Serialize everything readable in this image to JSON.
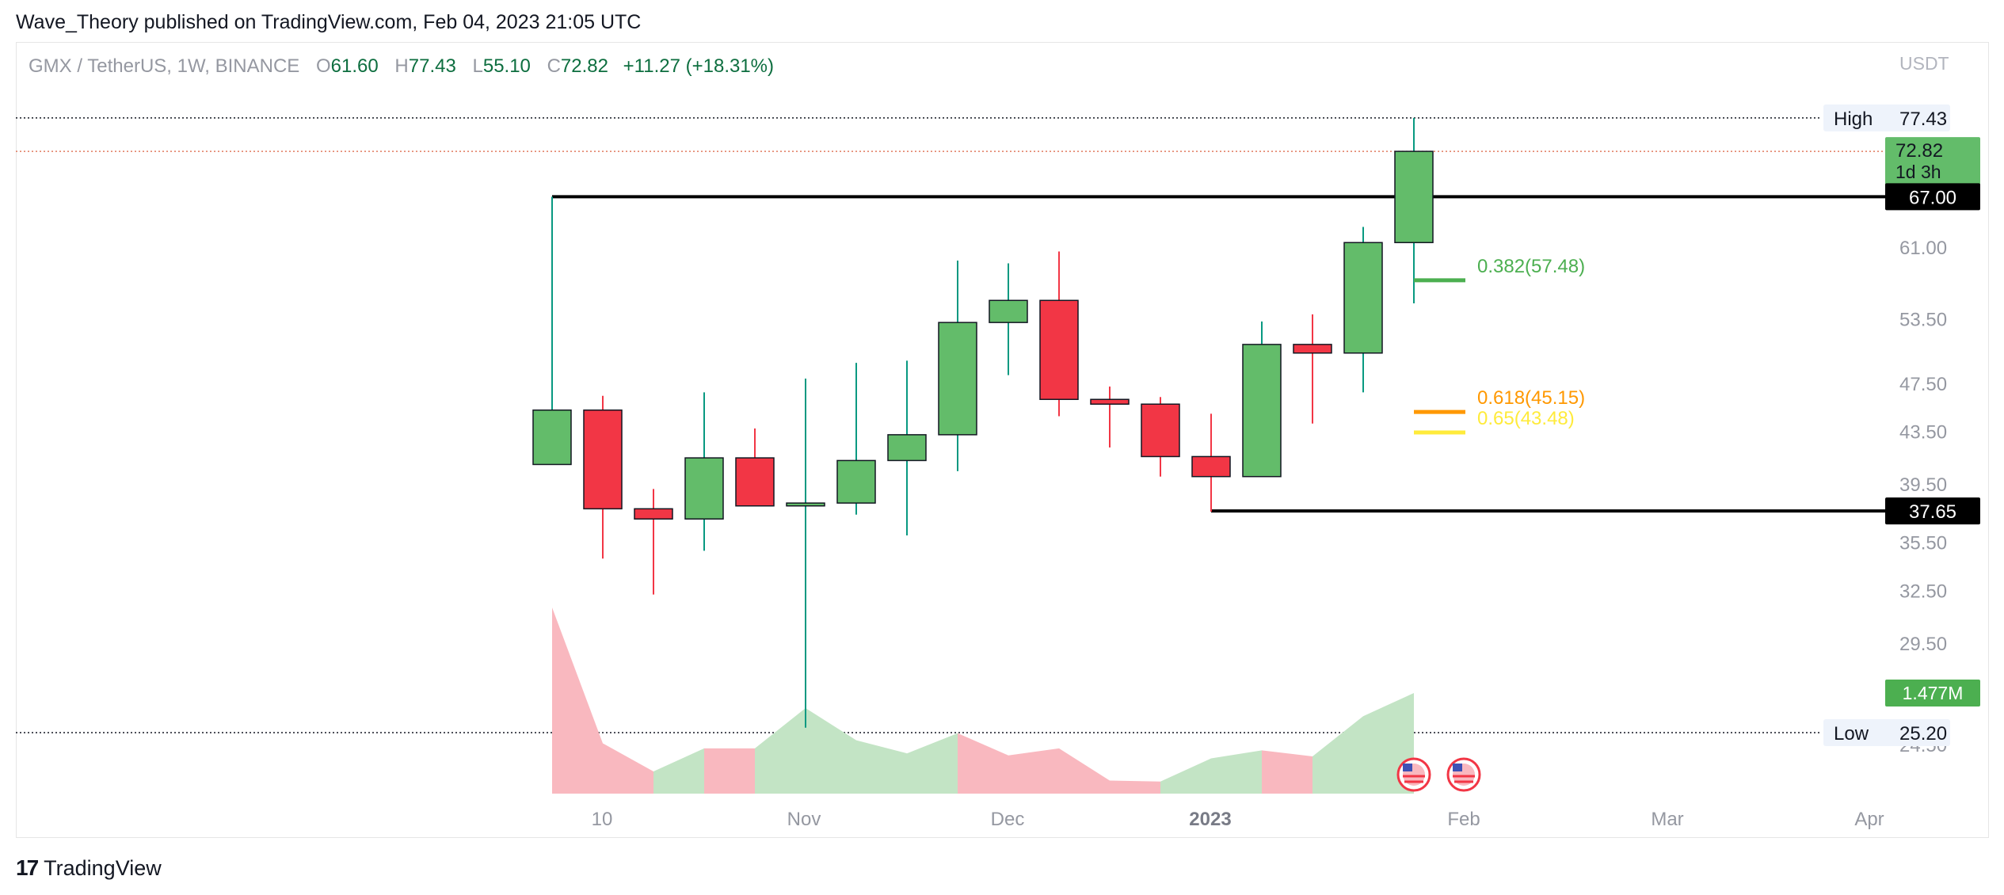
{
  "header": {
    "publisher_text": "Wave_Theory published on TradingView.com, Feb 04, 2023 21:05 UTC"
  },
  "legend": {
    "symbol": "GMX / TetherUS, 1W, BINANCE",
    "open_label": "O",
    "open": "61.60",
    "high_label": "H",
    "high": "77.43",
    "low_label": "L",
    "low": "55.10",
    "close_label": "C",
    "close": "72.82",
    "change": "+11.27 (+18.31%)"
  },
  "footer": {
    "logo_mark": "17",
    "brand": "TradingView"
  },
  "chart_data": {
    "type": "candlestick",
    "currency_label": "USDT",
    "y_ticks": [
      "61.00",
      "53.50",
      "47.50",
      "43.50",
      "39.50",
      "35.50",
      "32.50",
      "29.50",
      "24.50"
    ],
    "x_ticks": [
      "10",
      "Nov",
      "Dec",
      "2023",
      "Feb",
      "Mar",
      "Apr"
    ],
    "candles": [
      {
        "o": 41.0,
        "h": 67.0,
        "l": 41.0,
        "c": 45.3
      },
      {
        "o": 45.3,
        "h": 46.5,
        "l": 34.5,
        "c": 37.8
      },
      {
        "o": 37.8,
        "h": 39.2,
        "l": 32.3,
        "c": 37.1
      },
      {
        "o": 37.1,
        "h": 46.8,
        "l": 35.0,
        "c": 41.5
      },
      {
        "o": 41.5,
        "h": 43.8,
        "l": 38.0,
        "c": 38.0
      },
      {
        "o": 38.0,
        "h": 48.0,
        "l": 25.3,
        "c": 38.2
      },
      {
        "o": 38.2,
        "h": 49.4,
        "l": 37.4,
        "c": 41.3
      },
      {
        "o": 41.3,
        "h": 49.6,
        "l": 36.0,
        "c": 43.3
      },
      {
        "o": 43.3,
        "h": 59.6,
        "l": 40.5,
        "c": 53.2
      },
      {
        "o": 53.2,
        "h": 59.3,
        "l": 48.3,
        "c": 55.4
      },
      {
        "o": 55.4,
        "h": 60.6,
        "l": 44.8,
        "c": 46.2
      },
      {
        "o": 46.2,
        "h": 47.3,
        "l": 42.3,
        "c": 45.8
      },
      {
        "o": 45.8,
        "h": 46.4,
        "l": 40.1,
        "c": 41.6
      },
      {
        "o": 41.6,
        "h": 45.0,
        "l": 37.6,
        "c": 40.1
      },
      {
        "o": 40.1,
        "h": 53.3,
        "l": 40.1,
        "c": 51.1
      },
      {
        "o": 51.1,
        "h": 54.0,
        "l": 44.2,
        "c": 50.3
      },
      {
        "o": 50.3,
        "h": 63.4,
        "l": 46.8,
        "c": 61.6
      },
      {
        "o": 61.6,
        "h": 77.43,
        "l": 55.1,
        "c": 72.82
      }
    ],
    "volume_last_label": "1.477M",
    "volume": [
      {
        "v": 1.85,
        "d": "down"
      },
      {
        "v": 0.5,
        "d": "down"
      },
      {
        "v": 0.22,
        "d": "down"
      },
      {
        "v": 0.45,
        "d": "up"
      },
      {
        "v": 0.45,
        "d": "down"
      },
      {
        "v": 0.85,
        "d": "up"
      },
      {
        "v": 0.53,
        "d": "up"
      },
      {
        "v": 0.4,
        "d": "up"
      },
      {
        "v": 0.6,
        "d": "up"
      },
      {
        "v": 0.38,
        "d": "down"
      },
      {
        "v": 0.45,
        "d": "down"
      },
      {
        "v": 0.13,
        "d": "down"
      },
      {
        "v": 0.12,
        "d": "down"
      },
      {
        "v": 0.35,
        "d": "up"
      },
      {
        "v": 0.43,
        "d": "up"
      },
      {
        "v": 0.37,
        "d": "down"
      },
      {
        "v": 0.77,
        "d": "up"
      },
      {
        "v": 1.0,
        "d": "up"
      }
    ],
    "high_marker": {
      "label": "High",
      "value": "77.43"
    },
    "low_marker": {
      "label": "Low",
      "value": "25.20"
    },
    "current_price": {
      "value": "72.82",
      "countdown": "1d 3h"
    },
    "horizontal_levels": [
      {
        "value": 67.0,
        "label": "67.00"
      },
      {
        "value": 37.65,
        "label": "37.65"
      }
    ],
    "fib_levels": [
      {
        "value": 57.48,
        "label": "0.382(57.48)",
        "color": "#4caf50"
      },
      {
        "value": 45.15,
        "label": "0.618(45.15)",
        "color": "#ff9800"
      },
      {
        "value": 43.48,
        "label": "0.65(43.48)",
        "color": "#ffeb3b"
      }
    ],
    "colors": {
      "up": "#63bc6a",
      "down": "#f23645",
      "vol_up": "#c3e4c5",
      "vol_down": "#f9b8bf",
      "wick_up": "#089981"
    }
  }
}
